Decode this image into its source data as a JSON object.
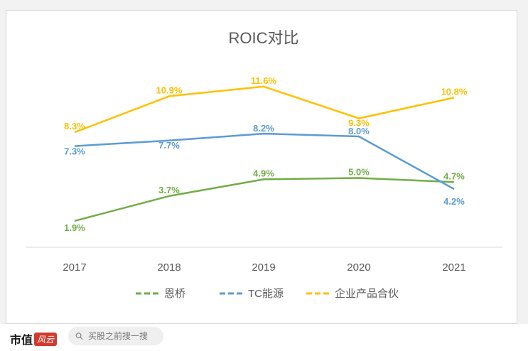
{
  "chart_data": {
    "type": "line",
    "title": "ROIC对比",
    "categories": [
      "2017",
      "2018",
      "2019",
      "2020",
      "2021"
    ],
    "ylim": [
      0,
      14
    ],
    "grid": false,
    "legend_position": "bottom",
    "series": [
      {
        "name": "恩桥",
        "color": "#70ad47",
        "values": [
          1.9,
          3.7,
          4.9,
          5.0,
          4.7
        ],
        "labels": [
          "1.9%",
          "3.7%",
          "4.9%",
          "5.0%",
          "4.7%"
        ]
      },
      {
        "name": "TC能源",
        "color": "#5b9bd5",
        "values": [
          7.3,
          7.7,
          8.2,
          8.0,
          4.2
        ],
        "labels": [
          "7.3%",
          "7.7%",
          "8.2%",
          "8.0%",
          "4.2%"
        ]
      },
      {
        "name": "企业产品合伙",
        "color": "#ffc000",
        "values": [
          8.3,
          10.9,
          11.6,
          9.3,
          10.8
        ],
        "labels": [
          "8.3%",
          "10.9%",
          "11.6%",
          "9.3%",
          "10.8%"
        ]
      }
    ]
  },
  "footer": {
    "brand": "市值",
    "brand_logo": "风云",
    "search_placeholder": "买股之前搜一搜",
    "search_icon": "search-icon"
  }
}
